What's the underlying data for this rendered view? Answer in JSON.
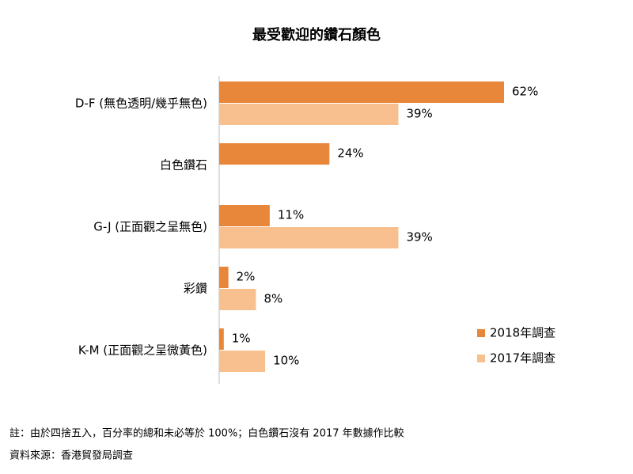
{
  "chart_data": {
    "type": "bar",
    "orientation": "horizontal",
    "title": "最受歡迎的鑽石顏色",
    "categories": [
      "D-F (無色透明/幾乎無色)",
      "白色鑽石",
      "G-J (正面觀之呈無色)",
      "彩鑽",
      "K-M (正面觀之呈微黃色)"
    ],
    "series": [
      {
        "name": "2018年調查",
        "color": "#e8863a",
        "values": [
          62,
          24,
          11,
          2,
          1
        ],
        "value_labels": [
          "62%",
          "24%",
          "11%",
          "2%",
          "1%"
        ]
      },
      {
        "name": "2017年調查",
        "color": "#f8c08f",
        "values": [
          39,
          null,
          39,
          8,
          10
        ],
        "value_labels": [
          "39%",
          null,
          "39%",
          "8%",
          "10%"
        ]
      }
    ],
    "notes": [
      "註：由於四捨五入，百分率的總和未必等於 100%；白色鑽石沒有 2017 年數據作比較",
      "資料來源：香港貿發局調查"
    ]
  }
}
